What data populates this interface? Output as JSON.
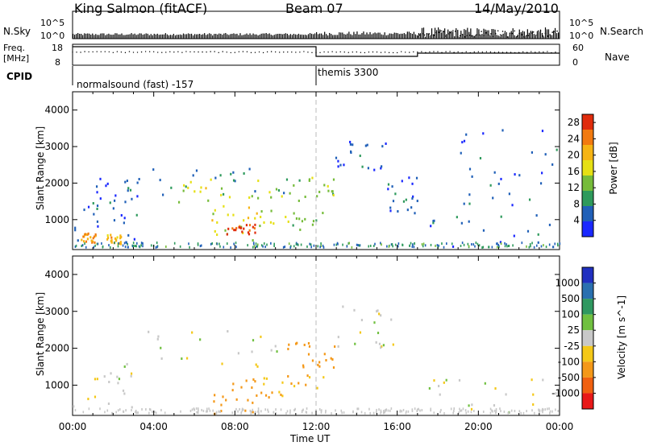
{
  "header": {
    "site": "King Salmon (fitACF)",
    "beam": "Beam 07",
    "date": "14/May/2010"
  },
  "noise_panel": {
    "left_label": "N.Sky",
    "right_label": "N.Search",
    "left_ticks": [
      "10^5",
      "10^0"
    ],
    "right_ticks": [
      "10^5",
      "10^0"
    ]
  },
  "freq_panel": {
    "left_label_line1": "Freq.",
    "left_label_line2": "[MHz]",
    "right_label": "Nave",
    "left_ticks": [
      "18",
      "8"
    ],
    "right_ticks": [
      "60",
      "0"
    ]
  },
  "cpid": {
    "label": "CPID",
    "modes": [
      {
        "name": "normalsound (fast) -157",
        "start_hour": 0
      },
      {
        "name": "themis 3300",
        "start_hour": 12
      }
    ]
  },
  "time_axis": {
    "label": "Time UT",
    "ticks": [
      "00:00",
      "04:00",
      "08:00",
      "12:00",
      "16:00",
      "20:00",
      "00:00"
    ]
  },
  "colors": {
    "power_scale": [
      "#1a28ff",
      "#2060b8",
      "#2e9a5c",
      "#76bc3a",
      "#e6e014",
      "#f6b414",
      "#f27a10",
      "#e02c0c"
    ],
    "velocity_scale": [
      "#2030c0",
      "#2a70b0",
      "#2f9860",
      "#70c040",
      "#c8c8c8",
      "#f4c818",
      "#f49818",
      "#f06010",
      "#e81818"
    ]
  },
  "chart_data": [
    {
      "type": "heatmap",
      "panel": "power",
      "ylabel": "Slant Range [km]",
      "xlabel": "",
      "x_range_hours": [
        0,
        24
      ],
      "ylim": [
        180,
        4500
      ],
      "y_ticks": [
        "1000",
        "2000",
        "3000",
        "4000"
      ],
      "colorbar_label": "Power [dB]",
      "colorbar_ticks": [
        "28",
        "24",
        "20",
        "16",
        "12",
        "8",
        "4"
      ],
      "colorbar_range": [
        0,
        30
      ],
      "echo_regions": [
        {
          "hours": [
            0.0,
            3.2
          ],
          "range_km": [
            250,
            1800
          ],
          "power_db": 6
        },
        {
          "hours": [
            0.4,
            1.1
          ],
          "range_km": [
            400,
            650
          ],
          "power_db": 22
        },
        {
          "hours": [
            1.6,
            2.4
          ],
          "range_km": [
            350,
            620
          ],
          "power_db": 20
        },
        {
          "hours": [
            0.5,
            3.5
          ],
          "range_km": [
            1300,
            2300
          ],
          "power_db": 5
        },
        {
          "hours": [
            3.5,
            11.0
          ],
          "range_km": [
            1700,
            2500
          ],
          "power_db": 8
        },
        {
          "hours": [
            5.2,
            10.5
          ],
          "range_km": [
            1500,
            2200
          ],
          "power_db": 16
        },
        {
          "hours": [
            6.8,
            9.2
          ],
          "range_km": [
            450,
            1400
          ],
          "power_db": 17
        },
        {
          "hours": [
            7.4,
            9.0
          ],
          "range_km": [
            620,
            900
          ],
          "power_db": 28
        },
        {
          "hours": [
            9.0,
            12.6
          ],
          "range_km": [
            750,
            1300
          ],
          "power_db": 14
        },
        {
          "hours": [
            10.0,
            13.0
          ],
          "range_km": [
            1500,
            2200
          ],
          "power_db": 14
        },
        {
          "hours": [
            12.8,
            15.8
          ],
          "range_km": [
            2000,
            3200
          ],
          "power_db": 5
        },
        {
          "hours": [
            15.5,
            17.0
          ],
          "range_km": [
            1200,
            2500
          ],
          "power_db": 5
        },
        {
          "hours": [
            17.5,
            24.0
          ],
          "range_km": [
            250,
            1200
          ],
          "power_db": 6
        },
        {
          "hours": [
            18.5,
            24.0
          ],
          "range_km": [
            1400,
            3500
          ],
          "power_db": 5
        }
      ]
    },
    {
      "type": "heatmap",
      "panel": "velocity",
      "ylabel": "Slant Range [km]",
      "xlabel": "Time UT",
      "x_range_hours": [
        0,
        24
      ],
      "ylim": [
        180,
        4500
      ],
      "y_ticks": [
        "1000",
        "2000",
        "3000",
        "4000"
      ],
      "colorbar_label": "Velocity [m s^-1]",
      "colorbar_ticks": [
        "1000",
        "500",
        "100",
        "25",
        "-25",
        "-100",
        "-500",
        "-1000"
      ],
      "echo_regions": [
        {
          "hours": [
            0.0,
            3.2
          ],
          "range_km": [
            250,
            1800
          ],
          "velocity": 0
        },
        {
          "hours": [
            3.5,
            11.0
          ],
          "range_km": [
            1500,
            2500
          ],
          "velocity": 0
        },
        {
          "hours": [
            6.8,
            9.5
          ],
          "range_km": [
            250,
            1200
          ],
          "velocity": -150
        },
        {
          "hours": [
            9.0,
            12.5
          ],
          "range_km": [
            700,
            1300
          ],
          "velocity": -100
        },
        {
          "hours": [
            10.5,
            13.0
          ],
          "range_km": [
            1500,
            2200
          ],
          "velocity": -300
        },
        {
          "hours": [
            12.8,
            15.8
          ],
          "range_km": [
            2000,
            3200
          ],
          "velocity": 0
        },
        {
          "hours": [
            17.5,
            24.0
          ],
          "range_km": [
            250,
            1200
          ],
          "velocity": 0
        }
      ]
    }
  ]
}
